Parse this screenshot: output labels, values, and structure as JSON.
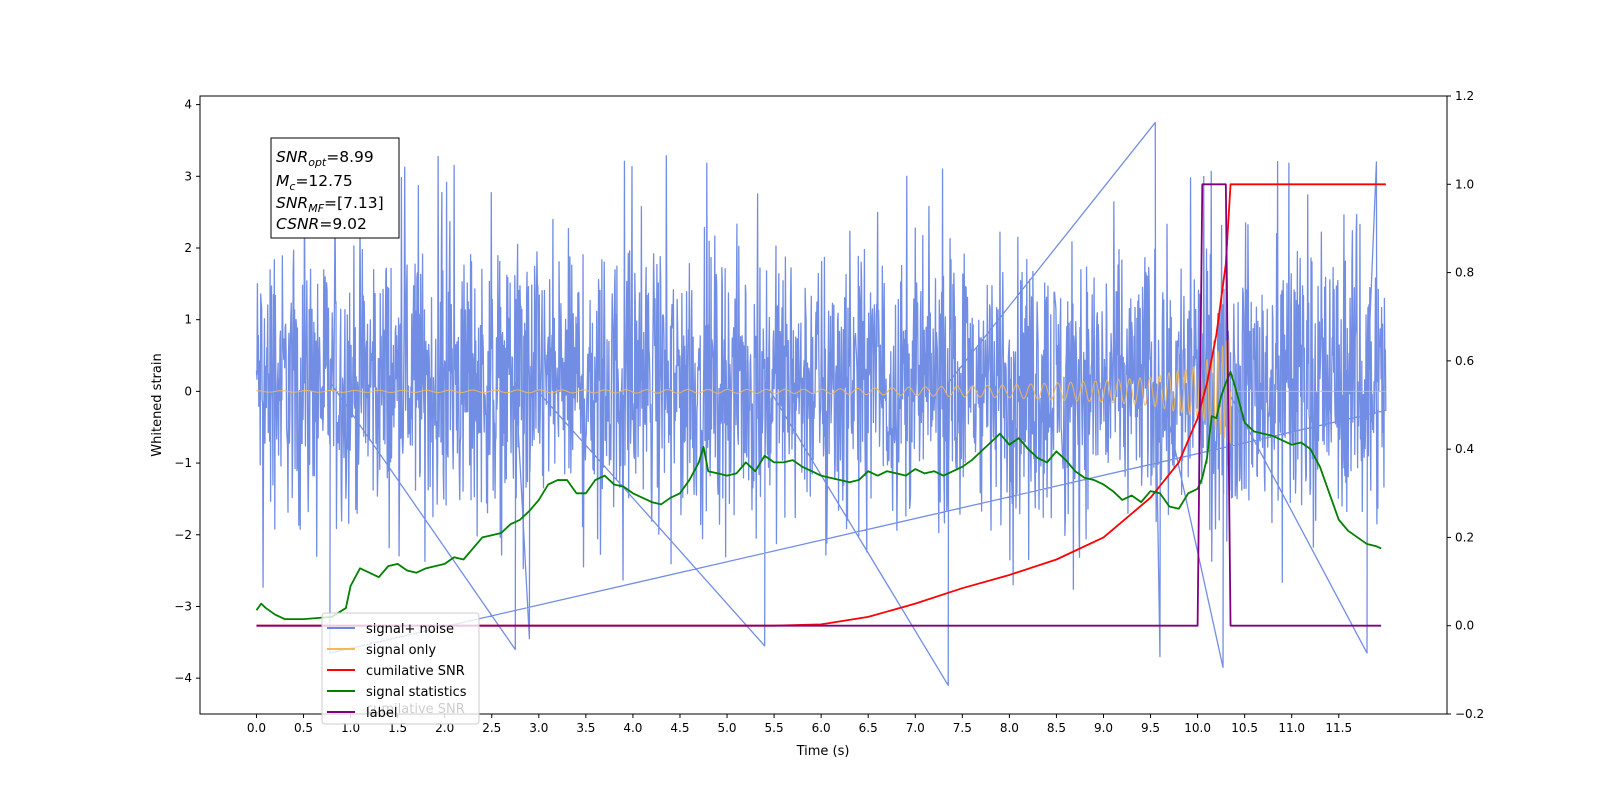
{
  "chart_data": {
    "type": "line",
    "xlabel": "Time (s)",
    "ylabel_left": "Whitened strain",
    "ylabel_right": "",
    "xlim": [
      -0.6,
      12.65
    ],
    "ylim_left": [
      -4.5,
      4.12
    ],
    "ylim_right": [
      -0.2,
      1.2
    ],
    "x_ticks": [
      0.0,
      0.5,
      1.0,
      1.5,
      2.0,
      2.5,
      3.0,
      3.5,
      4.0,
      4.5,
      5.0,
      5.5,
      6.0,
      6.5,
      7.0,
      7.5,
      8.0,
      8.5,
      9.0,
      9.5,
      10.0,
      10.5,
      11.0,
      11.5
    ],
    "x_tick_labels": [
      "0.0",
      "0.5",
      "1.0",
      "1.5",
      "2.0",
      "2.5",
      "3.0",
      "3.5",
      "4.0",
      "4.5",
      "5.0",
      "5.5",
      "6.0",
      "6.5",
      "7.0",
      "7.5",
      "8.0",
      "8.5",
      "9.0",
      "9.5",
      "10.0",
      "10.5",
      "11.0",
      "11.5"
    ],
    "y_left_ticks": [
      -4,
      -3,
      -2,
      -1,
      0,
      1,
      2,
      3,
      4
    ],
    "y_left_tick_labels": [
      "−4",
      "−3",
      "−2",
      "−1",
      "0",
      "1",
      "2",
      "3",
      "4"
    ],
    "y_right_ticks": [
      -0.2,
      0.0,
      0.2,
      0.4,
      0.6,
      0.8,
      1.0,
      1.2
    ],
    "y_right_tick_labels": [
      "−0.2",
      "0.0",
      "0.2",
      "0.4",
      "0.6",
      "0.8",
      "1.0",
      "1.2"
    ],
    "grid": false,
    "legend_position": "lower-left",
    "stats_box": {
      "lines": [
        {
          "main": "SNR",
          "sub": "opt",
          "value": "=8.99"
        },
        {
          "main": "M",
          "sub": "c",
          "value": "=12.75"
        },
        {
          "main": "SNR",
          "sub": "MF",
          "value": "=[7.13]"
        },
        {
          "main": "CSNR",
          "sub": "",
          "value": "=9.02"
        }
      ]
    },
    "series": [
      {
        "name": "signal+ noise",
        "axis": "left",
        "color": "#6a87e3",
        "kind": "noise",
        "x_range": [
          0.0,
          12.0
        ],
        "typical_envelope": [
          -1.85,
          2.1
        ],
        "extreme_values": [
          {
            "x": 0.78,
            "y": -3.65
          },
          {
            "x": 2.75,
            "y": -3.6
          },
          {
            "x": 2.9,
            "y": -3.45
          },
          {
            "x": 5.4,
            "y": -3.55
          },
          {
            "x": 7.35,
            "y": -4.1
          },
          {
            "x": 9.55,
            "y": 3.75
          },
          {
            "x": 9.6,
            "y": -3.7
          },
          {
            "x": 10.27,
            "y": -3.85
          },
          {
            "x": 11.8,
            "y": -3.65
          },
          {
            "x": 11.9,
            "y": 3.2
          }
        ]
      },
      {
        "name": "signal only",
        "axis": "left",
        "color": "#f5b955",
        "kind": "chirp",
        "x_range": [
          0.0,
          12.0
        ],
        "merger_time": 10.35,
        "amplitude_points": [
          [
            0.0,
            0.01
          ],
          [
            6.0,
            0.03
          ],
          [
            7.0,
            0.06
          ],
          [
            8.0,
            0.09
          ],
          [
            9.0,
            0.15
          ],
          [
            9.5,
            0.2
          ],
          [
            10.0,
            0.35
          ],
          [
            10.2,
            0.55
          ],
          [
            10.3,
            0.7
          ],
          [
            10.35,
            0.8
          ]
        ]
      },
      {
        "name": "cumilative SNR",
        "axis": "right",
        "color": "#ff0000",
        "x": [
          0.0,
          5.5,
          6.0,
          6.5,
          7.0,
          7.5,
          8.0,
          8.5,
          9.0,
          9.5,
          9.8,
          10.0,
          10.1,
          10.2,
          10.3,
          10.35,
          12.0
        ],
        "values": [
          0.0,
          0.0,
          0.003,
          0.02,
          0.05,
          0.085,
          0.115,
          0.15,
          0.2,
          0.29,
          0.37,
          0.47,
          0.55,
          0.66,
          0.82,
          1.0,
          1.0
        ]
      },
      {
        "name": "signal statistics",
        "axis": "right",
        "color": "#008000",
        "x": [
          0.0,
          0.05,
          0.1,
          0.2,
          0.3,
          0.5,
          0.8,
          0.95,
          1.0,
          1.1,
          1.2,
          1.3,
          1.4,
          1.5,
          1.6,
          1.7,
          1.8,
          1.9,
          2.0,
          2.1,
          2.2,
          2.3,
          2.4,
          2.5,
          2.6,
          2.7,
          2.8,
          2.9,
          3.0,
          3.1,
          3.2,
          3.3,
          3.4,
          3.5,
          3.6,
          3.7,
          3.8,
          3.9,
          4.0,
          4.1,
          4.2,
          4.3,
          4.4,
          4.5,
          4.6,
          4.7,
          4.75,
          4.8,
          4.9,
          5.0,
          5.1,
          5.2,
          5.3,
          5.4,
          5.5,
          5.6,
          5.7,
          5.8,
          5.9,
          6.0,
          6.1,
          6.2,
          6.3,
          6.4,
          6.5,
          6.6,
          6.7,
          6.8,
          6.9,
          7.0,
          7.1,
          7.2,
          7.3,
          7.4,
          7.5,
          7.6,
          7.7,
          7.8,
          7.9,
          8.0,
          8.1,
          8.2,
          8.3,
          8.4,
          8.5,
          8.6,
          8.7,
          8.8,
          8.9,
          9.0,
          9.1,
          9.2,
          9.3,
          9.4,
          9.5,
          9.6,
          9.7,
          9.8,
          9.9,
          10.0,
          10.05,
          10.1,
          10.15,
          10.2,
          10.25,
          10.3,
          10.35,
          10.4,
          10.5,
          10.6,
          10.7,
          10.8,
          10.9,
          11.0,
          11.1,
          11.2,
          11.3,
          11.4,
          11.5,
          11.6,
          11.7,
          11.8,
          11.9,
          11.95
        ],
        "values": [
          0.035,
          0.05,
          0.04,
          0.025,
          0.015,
          0.015,
          0.02,
          0.04,
          0.09,
          0.13,
          0.12,
          0.11,
          0.135,
          0.14,
          0.125,
          0.12,
          0.13,
          0.135,
          0.14,
          0.155,
          0.15,
          0.175,
          0.2,
          0.205,
          0.21,
          0.23,
          0.24,
          0.26,
          0.285,
          0.32,
          0.33,
          0.33,
          0.3,
          0.3,
          0.33,
          0.34,
          0.32,
          0.315,
          0.3,
          0.29,
          0.28,
          0.275,
          0.29,
          0.3,
          0.33,
          0.37,
          0.405,
          0.35,
          0.345,
          0.34,
          0.345,
          0.37,
          0.35,
          0.385,
          0.37,
          0.37,
          0.375,
          0.36,
          0.35,
          0.34,
          0.335,
          0.33,
          0.325,
          0.33,
          0.35,
          0.34,
          0.35,
          0.345,
          0.34,
          0.355,
          0.345,
          0.35,
          0.34,
          0.35,
          0.36,
          0.375,
          0.395,
          0.415,
          0.435,
          0.41,
          0.425,
          0.4,
          0.38,
          0.37,
          0.395,
          0.375,
          0.35,
          0.335,
          0.33,
          0.32,
          0.305,
          0.285,
          0.295,
          0.28,
          0.305,
          0.3,
          0.27,
          0.265,
          0.3,
          0.31,
          0.335,
          0.38,
          0.475,
          0.47,
          0.52,
          0.55,
          0.575,
          0.54,
          0.46,
          0.44,
          0.435,
          0.43,
          0.42,
          0.41,
          0.415,
          0.4,
          0.36,
          0.3,
          0.24,
          0.215,
          0.2,
          0.185,
          0.18,
          0.175
        ]
      },
      {
        "name": "label",
        "axis": "right",
        "color": "#800080",
        "x": [
          0.0,
          10.0,
          10.05,
          10.3,
          10.35,
          11.95
        ],
        "values": [
          0.0,
          0.0,
          1.0,
          1.0,
          0.0,
          0.0
        ]
      }
    ],
    "legend": {
      "entries": [
        {
          "label": "signal+ noise",
          "color": "#6a87e3"
        },
        {
          "label": "signal only",
          "color": "#f5b955"
        },
        {
          "label": "cumilative SNR",
          "color": "#ff0000"
        },
        {
          "label": "signal statistics",
          "color": "#008000"
        },
        {
          "label": "label",
          "color": "#800080"
        }
      ],
      "ghost_text": "cumilative SNR"
    }
  }
}
